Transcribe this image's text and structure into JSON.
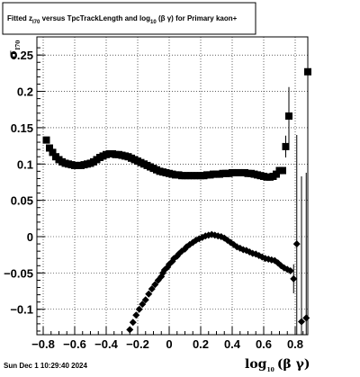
{
  "chart_data": {
    "type": "scatter",
    "title": "Fitted  z",
    "title_sub": "I70",
    "title_mid": "  versus TpcTrackLength and log",
    "title_log_sub": "10",
    "title_end": " (β  γ) for Primary kaon+",
    "xlabel": "log",
    "xlabel_sub": "10",
    "xlabel_end": "(β γ)",
    "ylabel": "σ",
    "ylabel_sub": "I70",
    "xlim": [
      -0.84,
      0.88
    ],
    "ylim": [
      -0.135,
      0.275
    ],
    "x_ticks": [
      "−0.8",
      "−0.6",
      "−0.4",
      "−0.2",
      "0",
      "0.2",
      "0.4",
      "0.6",
      "0.8"
    ],
    "y_ticks": [
      "−0.1",
      "−0.05",
      "0",
      "0.05",
      "0.1",
      "0.15",
      "0.2",
      "0.25"
    ],
    "grid": true,
    "timestamp": "Sun Dec  1 10:29:40 2024",
    "series": [
      {
        "marker": "square",
        "points": [
          [
            -0.78,
            0.133
          ],
          [
            -0.76,
            0.122
          ],
          [
            -0.74,
            0.116
          ],
          [
            -0.72,
            0.11
          ],
          [
            -0.7,
            0.106
          ],
          [
            -0.68,
            0.103
          ],
          [
            -0.66,
            0.101
          ],
          [
            -0.64,
            0.1
          ],
          [
            -0.62,
            0.099
          ],
          [
            -0.6,
            0.098
          ],
          [
            -0.58,
            0.098
          ],
          [
            -0.56,
            0.098
          ],
          [
            -0.54,
            0.099
          ],
          [
            -0.52,
            0.1
          ],
          [
            -0.5,
            0.101
          ],
          [
            -0.48,
            0.103
          ],
          [
            -0.46,
            0.106
          ],
          [
            -0.44,
            0.109
          ],
          [
            -0.42,
            0.111
          ],
          [
            -0.4,
            0.113
          ],
          [
            -0.38,
            0.114
          ],
          [
            -0.36,
            0.114
          ],
          [
            -0.34,
            0.113
          ],
          [
            -0.32,
            0.113
          ],
          [
            -0.3,
            0.112
          ],
          [
            -0.28,
            0.111
          ],
          [
            -0.26,
            0.11
          ],
          [
            -0.24,
            0.108
          ],
          [
            -0.22,
            0.106
          ],
          [
            -0.2,
            0.104
          ],
          [
            -0.18,
            0.102
          ],
          [
            -0.16,
            0.1
          ],
          [
            -0.14,
            0.098
          ],
          [
            -0.12,
            0.096
          ],
          [
            -0.1,
            0.094
          ],
          [
            -0.08,
            0.092
          ],
          [
            -0.06,
            0.09
          ],
          [
            -0.04,
            0.089
          ],
          [
            -0.02,
            0.088
          ],
          [
            0.0,
            0.087
          ],
          [
            0.02,
            0.086
          ],
          [
            0.04,
            0.085
          ],
          [
            0.06,
            0.085
          ],
          [
            0.08,
            0.084
          ],
          [
            0.1,
            0.084
          ],
          [
            0.12,
            0.084
          ],
          [
            0.14,
            0.084
          ],
          [
            0.16,
            0.084
          ],
          [
            0.18,
            0.084
          ],
          [
            0.2,
            0.084
          ],
          [
            0.22,
            0.084
          ],
          [
            0.24,
            0.085
          ],
          [
            0.26,
            0.085
          ],
          [
            0.28,
            0.086
          ],
          [
            0.3,
            0.086
          ],
          [
            0.32,
            0.086
          ],
          [
            0.34,
            0.087
          ],
          [
            0.36,
            0.087
          ],
          [
            0.38,
            0.087
          ],
          [
            0.4,
            0.088
          ],
          [
            0.42,
            0.088
          ],
          [
            0.44,
            0.088
          ],
          [
            0.46,
            0.088
          ],
          [
            0.48,
            0.088
          ],
          [
            0.5,
            0.087
          ],
          [
            0.52,
            0.087
          ],
          [
            0.54,
            0.086
          ],
          [
            0.56,
            0.085
          ],
          [
            0.58,
            0.084
          ],
          [
            0.6,
            0.083
          ],
          [
            0.62,
            0.082
          ],
          [
            0.64,
            0.082
          ],
          [
            0.66,
            0.083
          ],
          [
            0.68,
            0.086
          ],
          [
            0.7,
            0.091
          ],
          [
            0.72,
            0.091
          ],
          [
            0.74,
            0.124
          ],
          [
            0.76,
            0.166
          ],
          [
            0.88,
            0.227
          ]
        ],
        "errors_y": [
          [
            0.74,
            0.015
          ],
          [
            0.76,
            0.04
          ],
          [
            0.88,
            0.2
          ]
        ]
      },
      {
        "marker": "diamond",
        "points": [
          [
            -0.25,
            -0.128
          ],
          [
            -0.23,
            -0.118
          ],
          [
            -0.21,
            -0.108
          ],
          [
            -0.19,
            -0.1
          ],
          [
            -0.17,
            -0.093
          ],
          [
            -0.15,
            -0.087
          ],
          [
            -0.13,
            -0.079
          ],
          [
            -0.11,
            -0.072
          ],
          [
            -0.09,
            -0.066
          ],
          [
            -0.07,
            -0.06
          ],
          [
            -0.05,
            -0.055
          ],
          [
            -0.04,
            -0.05
          ],
          [
            -0.03,
            -0.046
          ],
          [
            -0.01,
            -0.042
          ],
          [
            0.0,
            -0.038
          ],
          [
            0.02,
            -0.034
          ],
          [
            0.03,
            -0.03
          ],
          [
            0.05,
            -0.027
          ],
          [
            0.06,
            -0.024
          ],
          [
            0.08,
            -0.02
          ],
          [
            0.1,
            -0.017
          ],
          [
            0.11,
            -0.014
          ],
          [
            0.13,
            -0.011
          ],
          [
            0.15,
            -0.008
          ],
          [
            0.17,
            -0.005
          ],
          [
            0.19,
            -0.003
          ],
          [
            0.21,
            -0.001
          ],
          [
            0.23,
            0.001
          ],
          [
            0.25,
            0.002
          ],
          [
            0.27,
            0.003
          ],
          [
            0.29,
            0.002
          ],
          [
            0.31,
            0.001
          ],
          [
            0.33,
            0.0
          ],
          [
            0.35,
            -0.002
          ],
          [
            0.37,
            -0.005
          ],
          [
            0.39,
            -0.008
          ],
          [
            0.41,
            -0.011
          ],
          [
            0.43,
            -0.014
          ],
          [
            0.45,
            -0.016
          ],
          [
            0.47,
            -0.018
          ],
          [
            0.49,
            -0.019
          ],
          [
            0.51,
            -0.021
          ],
          [
            0.53,
            -0.023
          ],
          [
            0.55,
            -0.024
          ],
          [
            0.57,
            -0.026
          ],
          [
            0.59,
            -0.028
          ],
          [
            0.61,
            -0.03
          ],
          [
            0.63,
            -0.031
          ],
          [
            0.65,
            -0.032
          ],
          [
            0.67,
            -0.033
          ],
          [
            0.69,
            -0.036
          ],
          [
            0.71,
            -0.04
          ],
          [
            0.73,
            -0.043
          ],
          [
            0.75,
            -0.045
          ],
          [
            0.77,
            -0.047
          ],
          [
            0.79,
            -0.058
          ],
          [
            0.81,
            -0.01
          ],
          [
            0.84,
            -0.117
          ],
          [
            0.87,
            -0.112
          ]
        ],
        "errors_y": [
          [
            0.79,
            0.02
          ],
          [
            0.81,
            0.15
          ],
          [
            0.84,
            0.2
          ],
          [
            0.87,
            0.2
          ]
        ]
      }
    ]
  }
}
